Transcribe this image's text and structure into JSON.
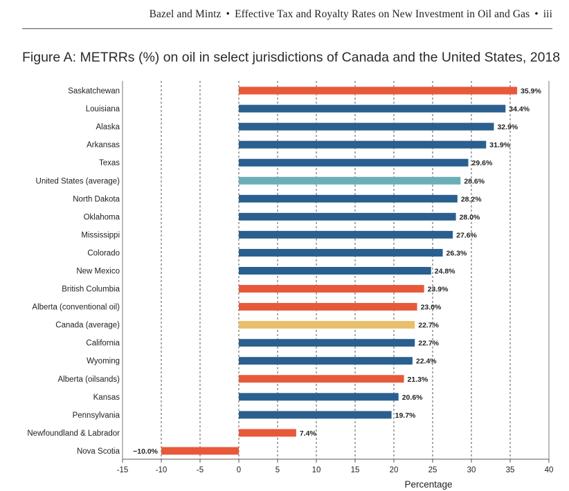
{
  "header": {
    "authors": "Bazel and Mintz",
    "title": "Effective Tax and Royalty Rates on New Investment in Oil and Gas",
    "page": "iii",
    "separator": "•"
  },
  "chart_data": {
    "type": "bar",
    "orientation": "horizontal",
    "title": "Figure A: METRRs (%) on oil in select jurisdictions of Canada and the United States, 2018",
    "xlabel": "Percentage",
    "ylabel": "",
    "xlim": [
      -15,
      40
    ],
    "xticks": [
      -15,
      -10,
      -5,
      0,
      5,
      10,
      15,
      20,
      25,
      30,
      35,
      40
    ],
    "xtick_labels": [
      "-15",
      "-10",
      "-5",
      "0",
      "5",
      "10",
      "15",
      "20",
      "25",
      "30",
      "35",
      "40"
    ],
    "grid": "vertical dashed",
    "colors": {
      "canada": "#e8593a",
      "us": "#2a5f8f",
      "us_average": "#6aaeb8",
      "canada_average": "#e8bf6a"
    },
    "categories": [
      "Saskatchewan",
      "Louisiana",
      "Alaska",
      "Arkansas",
      "Texas",
      "United States (average)",
      "North Dakota",
      "Oklahoma",
      "Mississippi",
      "Colorado",
      "New Mexico",
      "British Columbia",
      "Alberta (conventional oil)",
      "Canada (average)",
      "California",
      "Wyoming",
      "Alberta (oilsands)",
      "Kansas",
      "Pennsylvania",
      "Newfoundland & Labrador",
      "Nova Scotia"
    ],
    "values": [
      35.9,
      34.4,
      32.9,
      31.9,
      29.6,
      28.6,
      28.2,
      28.0,
      27.6,
      26.3,
      24.8,
      23.9,
      23.0,
      22.7,
      22.7,
      22.4,
      21.3,
      20.6,
      19.7,
      7.4,
      -10.0
    ],
    "value_labels": [
      "35.9%",
      "34.4%",
      "32.9%",
      "31.9%",
      "29.6%",
      "28.6%",
      "28.2%",
      "28.0%",
      "27.6%",
      "26.3%",
      "24.8%",
      "23.9%",
      "23.0%",
      "22.7%",
      "22.7%",
      "22.4%",
      "21.3%",
      "20.6%",
      "19.7%",
      "7.4%",
      "−10.0%"
    ],
    "groups": [
      "canada",
      "us",
      "us",
      "us",
      "us",
      "us_average",
      "us",
      "us",
      "us",
      "us",
      "us",
      "canada",
      "canada",
      "canada_average",
      "us",
      "us",
      "canada",
      "us",
      "us",
      "canada",
      "canada"
    ]
  }
}
